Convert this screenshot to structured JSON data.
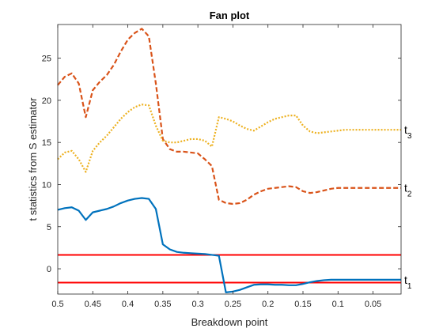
{
  "chart_data": {
    "type": "line",
    "title": "Fan plot",
    "xlabel": "Breakdown point",
    "ylabel": "t statistics from S estimator",
    "xlim": [
      0.5,
      0.01
    ],
    "x_reversed": true,
    "ylim": [
      -3,
      29
    ],
    "xticks": [
      0.5,
      0.45,
      0.4,
      0.35,
      0.3,
      0.25,
      0.2,
      0.15,
      0.1,
      0.05
    ],
    "xtick_labels": [
      "0.5",
      "0.45",
      "0.4",
      "0.35",
      "0.3",
      "0.25",
      "0.2",
      "0.15",
      "0.1",
      "0.05"
    ],
    "yticks": [
      0,
      5,
      10,
      15,
      20,
      25
    ],
    "ytick_labels": [
      "0",
      "5",
      "10",
      "15",
      "20",
      "25"
    ],
    "grid": false,
    "series": [
      {
        "label": "t",
        "subscript": "1",
        "color": "#0072BD",
        "style": "solid",
        "x": [
          0.5,
          0.49,
          0.48,
          0.47,
          0.46,
          0.45,
          0.44,
          0.43,
          0.42,
          0.41,
          0.4,
          0.39,
          0.38,
          0.37,
          0.36,
          0.35,
          0.34,
          0.33,
          0.32,
          0.31,
          0.3,
          0.29,
          0.28,
          0.27,
          0.26,
          0.25,
          0.24,
          0.23,
          0.22,
          0.21,
          0.2,
          0.19,
          0.18,
          0.17,
          0.16,
          0.15,
          0.14,
          0.13,
          0.12,
          0.11,
          0.1,
          0.09,
          0.08,
          0.07,
          0.06,
          0.05,
          0.04,
          0.03,
          0.02,
          0.01
        ],
        "y": [
          7.0,
          7.2,
          7.3,
          6.9,
          5.8,
          6.7,
          6.9,
          7.1,
          7.4,
          7.8,
          8.1,
          8.3,
          8.4,
          8.3,
          7.1,
          2.9,
          2.3,
          2.0,
          1.9,
          1.85,
          1.8,
          1.75,
          1.65,
          1.55,
          -2.8,
          -2.7,
          -2.5,
          -2.2,
          -1.9,
          -1.85,
          -1.85,
          -1.9,
          -1.9,
          -1.95,
          -1.95,
          -1.8,
          -1.6,
          -1.45,
          -1.35,
          -1.3,
          -1.3,
          -1.3,
          -1.3,
          -1.3,
          -1.3,
          -1.3,
          -1.3,
          -1.3,
          -1.3,
          -1.3
        ]
      },
      {
        "label": "t",
        "subscript": "2",
        "color": "#D95319",
        "style": "dashed",
        "x": [
          0.5,
          0.49,
          0.48,
          0.47,
          0.46,
          0.45,
          0.44,
          0.43,
          0.42,
          0.41,
          0.4,
          0.39,
          0.38,
          0.37,
          0.36,
          0.35,
          0.34,
          0.33,
          0.32,
          0.31,
          0.3,
          0.29,
          0.28,
          0.27,
          0.26,
          0.25,
          0.24,
          0.23,
          0.22,
          0.21,
          0.2,
          0.19,
          0.18,
          0.17,
          0.16,
          0.15,
          0.14,
          0.13,
          0.12,
          0.11,
          0.1,
          0.09,
          0.08,
          0.07,
          0.06,
          0.05,
          0.04,
          0.03,
          0.02,
          0.01
        ],
        "y": [
          21.8,
          22.8,
          23.2,
          22.0,
          18.0,
          21.2,
          22.2,
          23.0,
          24.2,
          25.8,
          27.2,
          28.0,
          28.5,
          27.6,
          22.0,
          15.4,
          14.2,
          13.9,
          13.9,
          13.8,
          13.7,
          13.0,
          12.2,
          8.2,
          7.8,
          7.7,
          7.8,
          8.2,
          8.8,
          9.2,
          9.5,
          9.6,
          9.7,
          9.8,
          9.7,
          9.2,
          9.0,
          9.1,
          9.3,
          9.5,
          9.6,
          9.6,
          9.6,
          9.6,
          9.6,
          9.6,
          9.6,
          9.6,
          9.6,
          9.6
        ]
      },
      {
        "label": "t",
        "subscript": "3",
        "color": "#EDB120",
        "style": "dotted",
        "x": [
          0.5,
          0.49,
          0.48,
          0.47,
          0.46,
          0.45,
          0.44,
          0.43,
          0.42,
          0.41,
          0.4,
          0.39,
          0.38,
          0.37,
          0.36,
          0.35,
          0.34,
          0.33,
          0.32,
          0.31,
          0.3,
          0.29,
          0.28,
          0.27,
          0.26,
          0.25,
          0.24,
          0.23,
          0.22,
          0.21,
          0.2,
          0.19,
          0.18,
          0.17,
          0.16,
          0.15,
          0.14,
          0.13,
          0.12,
          0.11,
          0.1,
          0.09,
          0.08,
          0.07,
          0.06,
          0.05,
          0.04,
          0.03,
          0.02,
          0.01
        ],
        "y": [
          13.0,
          13.8,
          14.0,
          13.0,
          11.5,
          14.0,
          15.0,
          15.8,
          16.8,
          17.8,
          18.6,
          19.2,
          19.5,
          19.4,
          17.0,
          15.2,
          15.0,
          15.0,
          15.2,
          15.4,
          15.4,
          15.2,
          14.5,
          18.0,
          17.8,
          17.5,
          17.0,
          16.6,
          16.4,
          16.9,
          17.4,
          17.8,
          18.0,
          18.2,
          18.2,
          17.0,
          16.3,
          16.1,
          16.2,
          16.3,
          16.4,
          16.5,
          16.5,
          16.5,
          16.5,
          16.5,
          16.5,
          16.5,
          16.5,
          16.5
        ]
      }
    ],
    "reference_lines": [
      {
        "y": 1.645,
        "color": "#FF0000"
      },
      {
        "y": -1.645,
        "color": "#FF0000"
      }
    ]
  }
}
